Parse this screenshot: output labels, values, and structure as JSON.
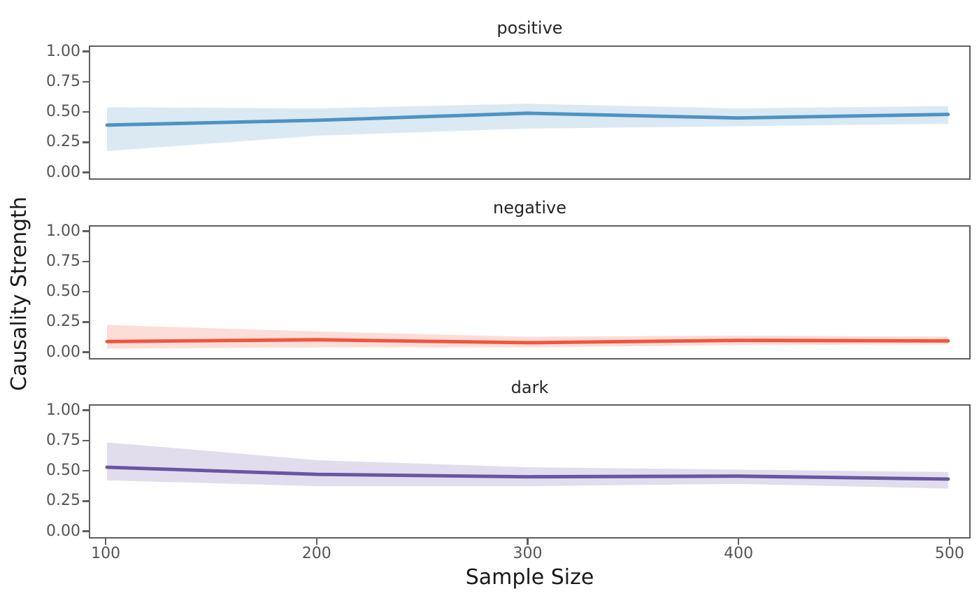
{
  "chart_data": {
    "type": "line",
    "title": "",
    "xlabel": "Sample Size",
    "ylabel": "Causality Strength",
    "x": [
      100,
      200,
      300,
      400,
      500
    ],
    "x_tick_labels": [
      "100",
      "200",
      "300",
      "400",
      "500"
    ],
    "y_tick_values": [
      0,
      0.25,
      0.5,
      0.75,
      1.0
    ],
    "y_tick_labels": [
      "0.00",
      "0.25",
      "0.50",
      "0.75",
      "1.00"
    ],
    "xlim": [
      92,
      510
    ],
    "ylim": [
      -0.06,
      1.05
    ],
    "grid": false,
    "legend_position": "none",
    "facet_layout": "rows",
    "styles": {
      "background": "#ffffff",
      "axis_color": "#5f5f5f",
      "tick_label_color": "#555555",
      "facet_title_color": "#262626",
      "axis_label_color": "#1a1a1a"
    },
    "facets": [
      {
        "title": "positive",
        "line_color": "#4d93c4",
        "band_opacity": 0.2,
        "mean": [
          0.39,
          0.43,
          0.49,
          0.45,
          0.48
        ],
        "band_lower": [
          0.17,
          0.3,
          0.36,
          0.38,
          0.4
        ],
        "band_upper": [
          0.54,
          0.53,
          0.57,
          0.53,
          0.55
        ]
      },
      {
        "title": "negative",
        "line_color": "#f0553c",
        "band_opacity": 0.2,
        "mean": [
          0.08,
          0.095,
          0.07,
          0.09,
          0.085
        ],
        "band_lower": [
          0.02,
          0.03,
          0.03,
          0.05,
          0.055
        ],
        "band_upper": [
          0.22,
          0.165,
          0.12,
          0.13,
          0.12
        ]
      },
      {
        "title": "dark",
        "line_color": "#6a55a3",
        "band_opacity": 0.2,
        "mean": [
          0.53,
          0.47,
          0.45,
          0.455,
          0.43
        ],
        "band_lower": [
          0.42,
          0.37,
          0.37,
          0.39,
          0.35
        ],
        "band_upper": [
          0.74,
          0.59,
          0.53,
          0.51,
          0.49
        ]
      }
    ]
  }
}
